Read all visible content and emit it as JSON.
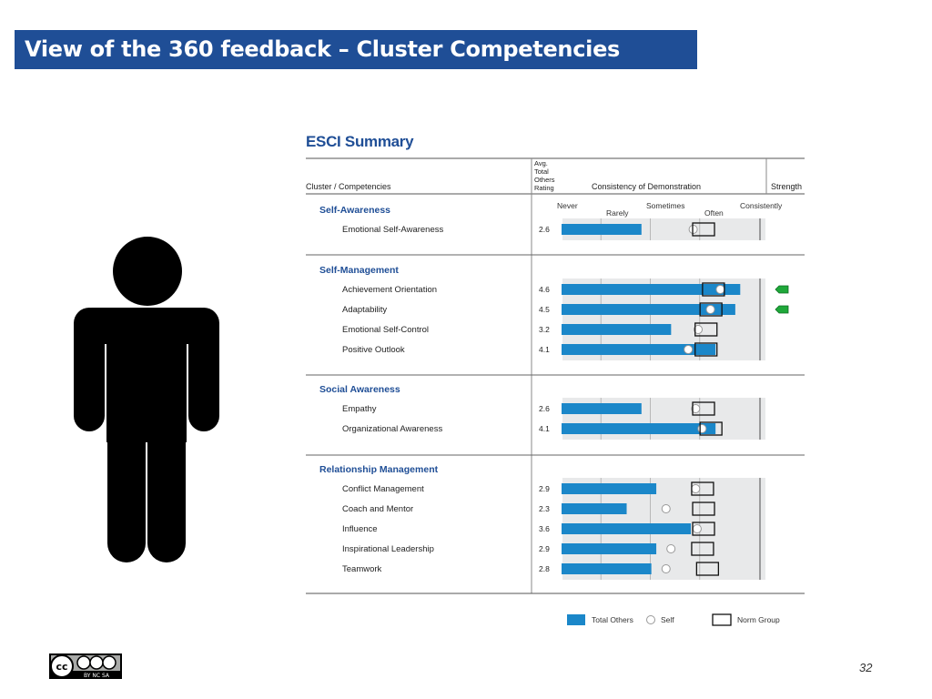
{
  "slide": {
    "title": "View of the 360 feedback – Cluster Competencies",
    "page_number": "32",
    "license_icon": "cc-by-nc-sa-icon",
    "license_text": "BY NC SA",
    "colors": {
      "title_bg": "#1f4e96",
      "bar": "#1b87c9",
      "strength": "#1fa83a"
    }
  },
  "chart_data": {
    "type": "bar",
    "title": "ESCI Summary",
    "headers": {
      "cluster": "Cluster / Competencies",
      "rating": [
        "Avg.",
        "Total",
        "Others",
        "Rating"
      ],
      "consistency": "Consistency of Demonstration",
      "strength": "Strength"
    },
    "scale_labels": [
      "Never",
      "Rarely",
      "Sometimes",
      "Often",
      "Consistently"
    ],
    "xlim": [
      1,
      5
    ],
    "clusters": [
      {
        "name": "Self-Awareness",
        "items": [
          {
            "name": "Emotional Self-Awareness",
            "total_others": 2.6,
            "self": 4.2,
            "norm": 4.3,
            "strength": false
          }
        ]
      },
      {
        "name": "Self-Management",
        "items": [
          {
            "name": "Achievement Orientation",
            "total_others": 4.6,
            "self": 4.75,
            "norm": 4.5,
            "strength": true
          },
          {
            "name": "Adaptability",
            "total_others": 4.5,
            "self": 4.55,
            "norm": 4.45,
            "strength": true
          },
          {
            "name": "Emotional Self-Control",
            "total_others": 3.2,
            "self": 4.3,
            "norm": 4.35,
            "strength": false
          },
          {
            "name": "Positive Outlook",
            "total_others": 4.1,
            "self": 4.1,
            "norm": 4.35,
            "strength": false
          }
        ]
      },
      {
        "name": "Social Awareness",
        "items": [
          {
            "name": "Empathy",
            "total_others": 2.6,
            "self": 4.25,
            "norm": 4.3,
            "strength": false
          },
          {
            "name": "Organizational Awareness",
            "total_others": 4.1,
            "self": 4.38,
            "norm": 4.45,
            "strength": false
          }
        ]
      },
      {
        "name": "Relationship Management",
        "items": [
          {
            "name": "Conflict Management",
            "total_others": 2.9,
            "self": 4.25,
            "norm": 4.28,
            "strength": false
          },
          {
            "name": "Coach and Mentor",
            "total_others": 2.3,
            "self": 3.65,
            "norm": 4.3,
            "strength": false
          },
          {
            "name": "Influence",
            "total_others": 3.6,
            "self": 4.28,
            "norm": 4.3,
            "strength": false
          },
          {
            "name": "Inspirational Leadership",
            "total_others": 2.9,
            "self": 3.75,
            "norm": 4.28,
            "strength": false
          },
          {
            "name": "Teamwork",
            "total_others": 2.8,
            "self": 3.65,
            "norm": 4.38,
            "strength": false
          }
        ]
      }
    ],
    "legend": {
      "total": "Total Others",
      "self": "Self",
      "norm": "Norm Group"
    }
  }
}
